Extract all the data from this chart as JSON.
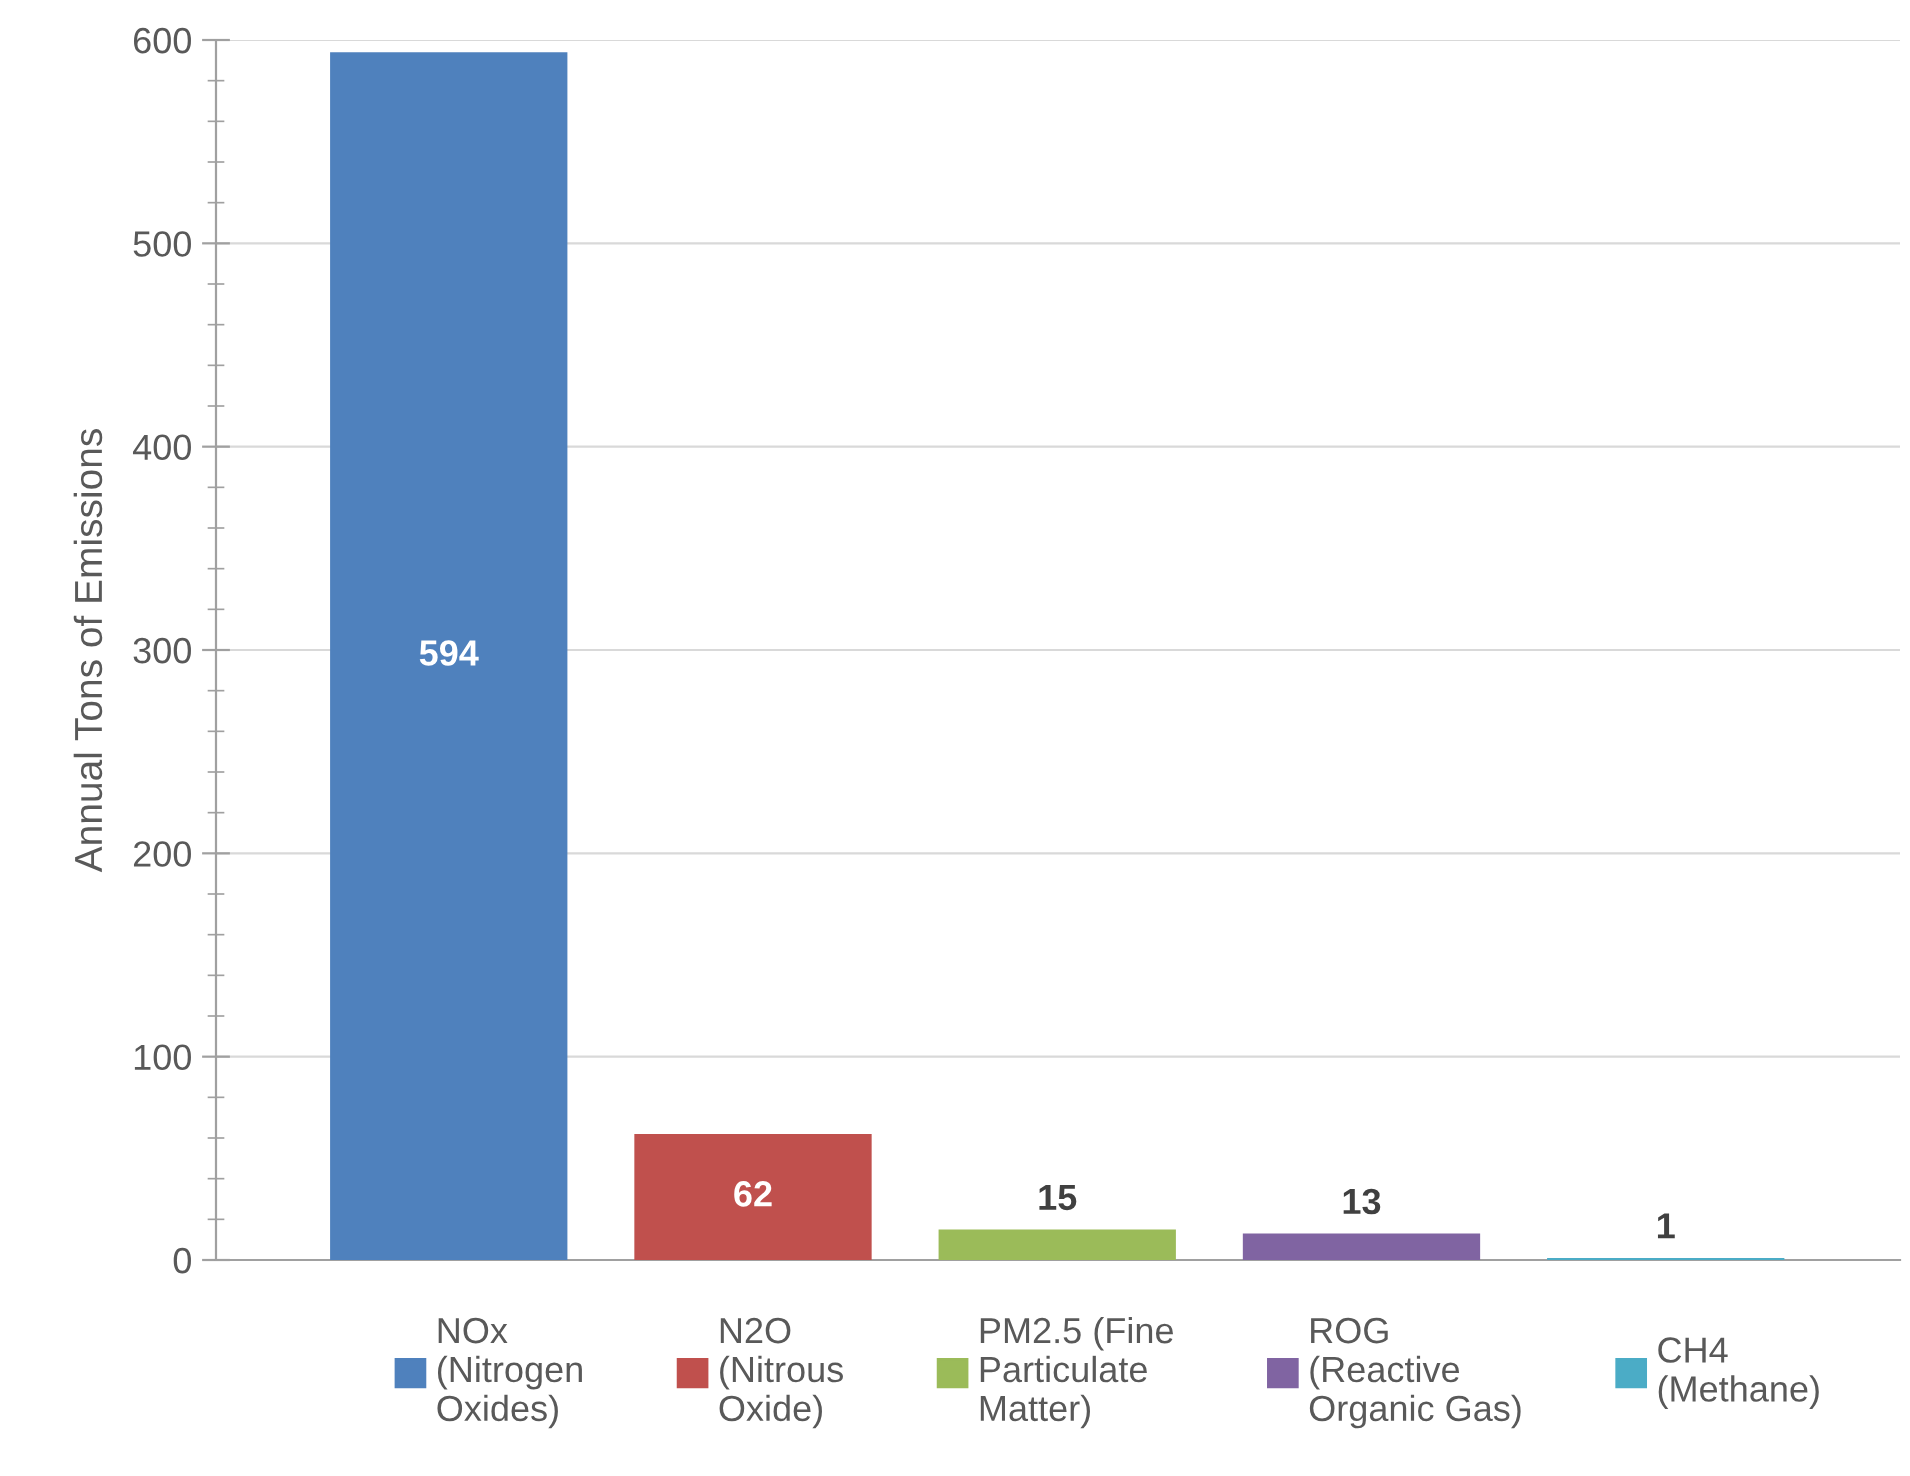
{
  "chart_data": {
    "type": "bar",
    "ylabel": "Annual Tons of Emissions",
    "categories": [
      null
    ],
    "series": [
      {
        "name": "NOx\n(Nitrogen\nOxides)",
        "color": "#4f81bd",
        "values": [
          594
        ]
      },
      {
        "name": "N2O\n(Nitrous\nOxide)",
        "color": "#c0504d",
        "values": [
          62
        ]
      },
      {
        "name": "PM2.5 (Fine\nParticulate\nMatter)",
        "color": "#9bbb59",
        "values": [
          15
        ]
      },
      {
        "name": "ROG\n(Reactive\nOrganic Gas)",
        "color": "#8064a2",
        "values": [
          13
        ]
      },
      {
        "name": "CH4\n(Methane)",
        "color": "#4bacc6",
        "values": [
          1
        ]
      }
    ],
    "ylim": [
      0,
      600
    ],
    "yticks": [
      0,
      100,
      200,
      300,
      400,
      500,
      600
    ],
    "grid": "y",
    "legend": "bottom",
    "data_labels": true
  }
}
